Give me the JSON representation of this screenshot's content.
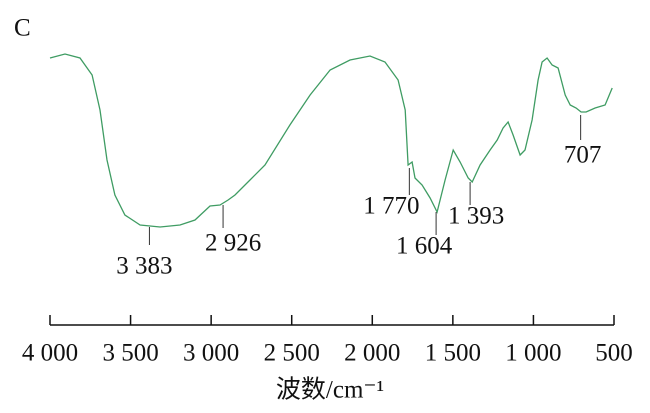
{
  "chart_data": {
    "type": "line",
    "title": "C",
    "x_label": "波数/cm⁻¹",
    "color": "#3f9c63",
    "x": [
      4000,
      3907,
      3814,
      3739,
      3690,
      3646,
      3597,
      3535,
      3441,
      3317,
      3193,
      3100,
      3007,
      2945,
      2895,
      2852,
      2759,
      2666,
      2511,
      2386,
      2262,
      2138,
      2014,
      1921,
      1840,
      1796,
      1778,
      1753,
      1735,
      1691,
      1641,
      1598,
      1548,
      1498,
      1455,
      1405,
      1380,
      1331,
      1269,
      1225,
      1188,
      1157,
      1126,
      1083,
      1052,
      1008,
      971,
      946,
      915,
      884,
      847,
      803,
      772,
      735,
      704,
      673,
      617,
      555,
      511
    ],
    "values": [
      91,
      93,
      91,
      82.5,
      65,
      40,
      22.5,
      12.5,
      7.5,
      6.5,
      7.5,
      10,
      17,
      17.5,
      20,
      22.5,
      30,
      37.5,
      57.5,
      72.5,
      85,
      90,
      92,
      89,
      80,
      65,
      37.5,
      39,
      31,
      27.5,
      21,
      14,
      30,
      45,
      39,
      31,
      29,
      37.5,
      45,
      50,
      56,
      59,
      52.5,
      42.5,
      45,
      60,
      80,
      89,
      91,
      87.5,
      86,
      72.5,
      67.5,
      66,
      64,
      64,
      66,
      67.5,
      76
    ],
    "xlim": [
      4000,
      500
    ],
    "ylim": [
      0,
      100
    ],
    "xticks": [
      {
        "value": 4000,
        "label": "4 000"
      },
      {
        "value": 3500,
        "label": "3 500"
      },
      {
        "value": 3000,
        "label": "3 000"
      },
      {
        "value": 2500,
        "label": "2 500"
      },
      {
        "value": 2000,
        "label": "2 000"
      },
      {
        "value": 1500,
        "label": "1 500"
      },
      {
        "value": 1000,
        "label": "1 000"
      },
      500
    ],
    "annotations": [
      {
        "x": 3383,
        "label": "3 383"
      },
      {
        "x": 2926,
        "label": "2 926"
      },
      {
        "x": 1770,
        "label": "1 770"
      },
      {
        "x": 1604,
        "label": "1 604"
      },
      {
        "x": 1393,
        "label": "1 393"
      },
      {
        "x": 707,
        "label": "707"
      }
    ]
  }
}
